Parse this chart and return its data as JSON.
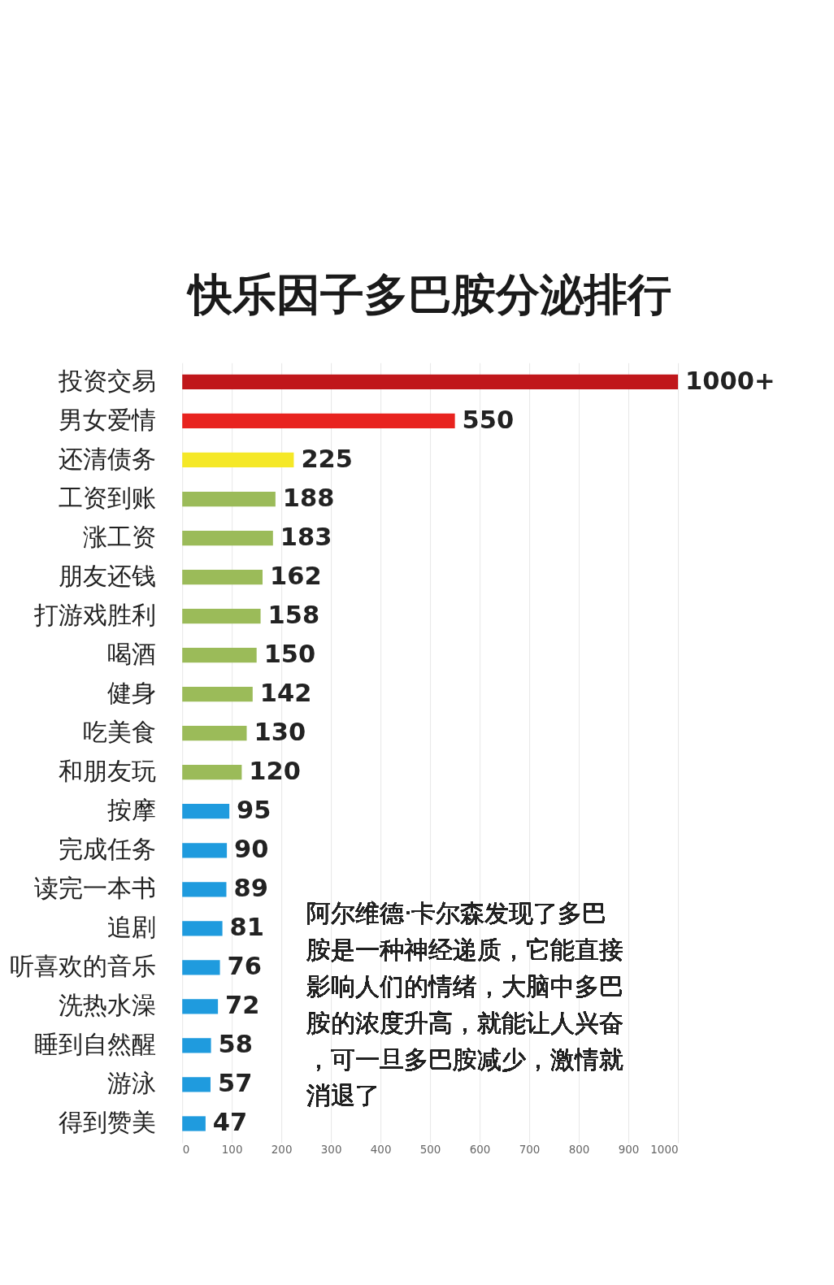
{
  "chart_data": {
    "type": "bar",
    "orientation": "horizontal",
    "title": "快乐因子多巴胺分泌排行",
    "categories": [
      "投资交易",
      "男女爱情",
      "还清债务",
      "工资到账",
      "涨工资",
      "朋友还钱",
      "打游戏胜利",
      "喝酒",
      "健身",
      "吃美食",
      "和朋友玩",
      "按摩",
      "完成任务",
      "读完一本书",
      "追剧",
      "听喜欢的音乐",
      "洗热水澡",
      "睡到自然醒",
      "游泳",
      "得到赞美"
    ],
    "values": [
      1000,
      550,
      225,
      188,
      183,
      162,
      158,
      150,
      142,
      130,
      120,
      95,
      90,
      89,
      81,
      76,
      72,
      58,
      57,
      47
    ],
    "value_labels": [
      "1000+",
      "550",
      "225",
      "188",
      "183",
      "162",
      "158",
      "150",
      "142",
      "130",
      "120",
      "95",
      "90",
      "89",
      "81",
      "76",
      "72",
      "58",
      "57",
      "47"
    ],
    "colors": [
      "#c0171b",
      "#e8231f",
      "#f5e827",
      "#9bbb59",
      "#9bbb59",
      "#9bbb59",
      "#9bbb59",
      "#9bbb59",
      "#9bbb59",
      "#9bbb59",
      "#9bbb59",
      "#1f9bde",
      "#1f9bde",
      "#1f9bde",
      "#1f9bde",
      "#1f9bde",
      "#1f9bde",
      "#1f9bde",
      "#1f9bde",
      "#1f9bde"
    ],
    "xlim": [
      0,
      1000
    ],
    "xticks": [
      0,
      100,
      200,
      300,
      400,
      500,
      600,
      700,
      800,
      900,
      1000
    ],
    "grid": "x",
    "annotations": [
      "阿尔维德·卡尔森发现了多巴胺是一种神经递质，它能直接影响人们的情绪，大脑中多巴胺的浓度升高，就能让人兴奋，可一旦多巴胺减少，激情就消退了"
    ]
  }
}
